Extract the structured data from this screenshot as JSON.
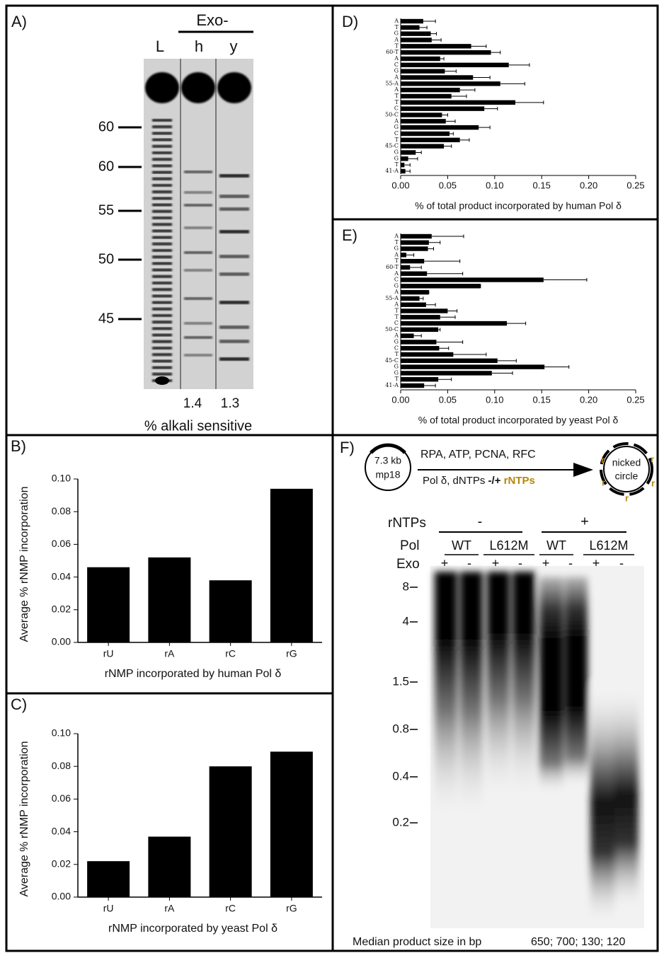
{
  "panels": {
    "A": {
      "panel_label": "A)",
      "header": "Exo-",
      "lanes": [
        "L",
        "h",
        "y"
      ],
      "size_markers": [
        "60",
        "60",
        "55",
        "50",
        "45"
      ],
      "lane_values": [
        "1.4",
        "1.3"
      ],
      "caption": "% alkali sensitive"
    },
    "F": {
      "panel_label": "F)",
      "plasmid": [
        "7.3 kb",
        "mp18"
      ],
      "reagents_top": "RPA, ATP, PCNA, RFC",
      "reagents_bottom": [
        "Pol δ, dNTPs",
        "-/+",
        "rNTPs"
      ],
      "product": [
        "nicked",
        "circle"
      ],
      "ribo_mark": "r",
      "row_labels": [
        "rNTPs",
        "Pol",
        "Exo"
      ],
      "rntps": [
        "-",
        "+"
      ],
      "pol": [
        "WT",
        "L612M",
        "WT",
        "L612M"
      ],
      "exo": [
        "+",
        "-",
        "+",
        "-",
        "+",
        "-",
        "+",
        "-"
      ],
      "size_markers": [
        "8",
        "4",
        "1.5",
        "0.8",
        "0.4",
        "0.2"
      ],
      "footer_label": "Median product size in bp",
      "footer_values": "650; 700; 130; 120"
    }
  },
  "chart_data": [
    {
      "type": "bar",
      "panel_label": "B)",
      "categories": [
        "rU",
        "rA",
        "rC",
        "rG"
      ],
      "values": [
        0.046,
        0.052,
        0.038,
        0.094
      ],
      "color": "#000000",
      "ylim": [
        0,
        0.1
      ],
      "yticks": [
        {
          "value": 0,
          "label": "0.00"
        },
        0.02,
        0.04,
        0.06,
        0.08,
        {
          "value": 0.1,
          "label": "0.10"
        }
      ],
      "ylabel": "Average % rNMP incorporation",
      "xlabel": "rNMP incorporated by human Pol δ"
    },
    {
      "type": "bar",
      "panel_label": "C)",
      "categories": [
        "rU",
        "rA",
        "rC",
        "rG"
      ],
      "values": [
        0.022,
        0.037,
        0.08,
        0.089
      ],
      "color": "#000000",
      "ylim": [
        0,
        0.1
      ],
      "yticks": [
        {
          "value": 0,
          "label": "0.00"
        },
        0.02,
        0.04,
        0.06,
        0.08,
        {
          "value": 0.1,
          "label": "0.10"
        }
      ],
      "ylabel": "Average % rNMP incorporation",
      "xlabel": "rNMP incorporated by yeast Pol δ"
    },
    {
      "type": "barh",
      "panel_label": "D)",
      "categories": [
        "41-A",
        "T",
        "G",
        "G",
        "45-C",
        "T",
        "C",
        "G",
        "A",
        "50-C",
        "C",
        "T",
        "T",
        "A",
        "55-A",
        "A",
        "G",
        "C",
        "A",
        "60-T",
        "T",
        "A",
        "G",
        "T",
        "A"
      ],
      "values": [
        0.005,
        0.004,
        0.008,
        0.016,
        0.046,
        0.063,
        0.052,
        0.083,
        0.048,
        0.044,
        0.089,
        0.122,
        0.054,
        0.063,
        0.106,
        0.077,
        0.047,
        0.115,
        0.042,
        0.096,
        0.075,
        0.033,
        0.032,
        0.02,
        0.024
      ],
      "errors": [
        0.005,
        0.006,
        0.01,
        0.006,
        0.008,
        0.01,
        0.004,
        0.012,
        0.01,
        0.006,
        0.014,
        0.03,
        0.016,
        0.016,
        0.026,
        0.018,
        0.012,
        0.022,
        0.004,
        0.01,
        0.016,
        0.01,
        0.006,
        0.008,
        0.013
      ],
      "color": "#000000",
      "xlim": [
        0,
        0.25
      ],
      "xticks": [
        {
          "value": 0,
          "label": "0.00"
        },
        0.05,
        {
          "value": 0.1,
          "label": "0.10"
        },
        0.15,
        {
          "value": 0.2,
          "label": "0.20"
        },
        0.25
      ],
      "xlabel": "% of total product incorporated by human Pol δ"
    },
    {
      "type": "barh",
      "panel_label": "E)",
      "categories": [
        "41-A",
        "T",
        "G",
        "G",
        "45-C",
        "T",
        "C",
        "G",
        "A",
        "50-C",
        "C",
        "T",
        "T",
        "A",
        "55-A",
        "A",
        "G",
        "C",
        "A",
        "60-T",
        "T",
        "A",
        "G",
        "T",
        "A"
      ],
      "values": [
        0.025,
        0.04,
        0.097,
        0.153,
        0.103,
        0.056,
        0.041,
        0.038,
        0.014,
        0.04,
        0.113,
        0.042,
        0.05,
        0.027,
        0.02,
        0.03,
        0.085,
        0.152,
        0.028,
        0.01,
        0.025,
        0.006,
        0.029,
        0.03,
        0.033
      ],
      "errors": [
        0.012,
        0.014,
        0.022,
        0.026,
        0.02,
        0.035,
        0.01,
        0.028,
        0.008,
        0.002,
        0.02,
        0.016,
        0.01,
        0.01,
        0.004,
        0,
        0,
        0.046,
        0.038,
        0.012,
        0.038,
        0.008,
        0.006,
        0.012,
        0.034
      ],
      "color": "#000000",
      "xlim": [
        0,
        0.25
      ],
      "xticks": [
        {
          "value": 0,
          "label": "0.00"
        },
        0.05,
        {
          "value": 0.1,
          "label": "0.10"
        },
        0.15,
        {
          "value": 0.2,
          "label": "0.20"
        },
        0.25
      ],
      "xlabel": "% of total product incorporated by yeast Pol δ"
    }
  ]
}
